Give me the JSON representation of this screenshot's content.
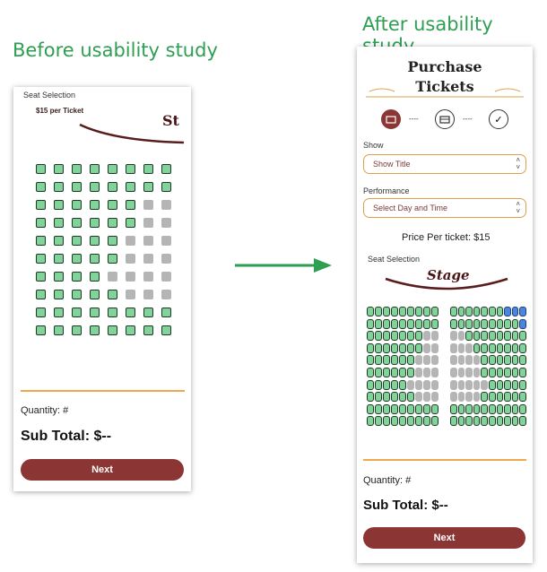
{
  "captions": {
    "before": "Before usability study",
    "after": "After usability study"
  },
  "before": {
    "heading": "Seat Selection",
    "price_note": "$15 per Ticket",
    "stage_label": "St",
    "quantity": "Quantity: #",
    "subtotal": "Sub Total: $--",
    "next": "Next",
    "seat_grid": {
      "rows": [
        "AAAAAAAA",
        "AAAAAAAA",
        "AAAAAATT",
        "AAAAAATT",
        "AAAAATTT",
        "AAAAATTT",
        "AAAATTTT",
        "AAAAATTT",
        "AAAAAAAA",
        "AAAAAAAA"
      ]
    }
  },
  "after": {
    "title_line1": "Purchase",
    "title_line2": "Tickets",
    "steps": [
      "ticket-icon",
      "card-icon",
      "check-icon"
    ],
    "show_label": "Show",
    "show_placeholder": "Show Title",
    "performance_label": "Performance",
    "performance_placeholder": "Select Day and Time",
    "price_per_ticket": "Price Per ticket: $15",
    "seat_selection": "Seat Selection",
    "stage_label": "Stage",
    "quantity": "Quantity: #",
    "subtotal": "Sub Total: $--",
    "next": "Next",
    "seat_grid": {
      "left_rows": [
        "AAAAAAAAA",
        "AAAAAAAAA",
        "AAAAAAATT",
        "AAAAAAATT",
        "AAAAAATTT",
        "AAAAAATTT",
        "AAAAATTTT",
        "AAAAAATTT",
        "AAAAAAAAA",
        "AAAAAAAAA"
      ],
      "right_rows": [
        "AAAAAAASSS",
        "AAAAAAAAAS",
        "TTAAAAAAAA",
        "TTTAAAAAAA",
        "TTTTAAAAAA",
        "TTTTAAAAAA",
        "TTTTTAAAAA",
        "TTTTAAAAAA",
        "AAAAAAAAAA",
        "AAAAAAAAAA"
      ]
    }
  }
}
